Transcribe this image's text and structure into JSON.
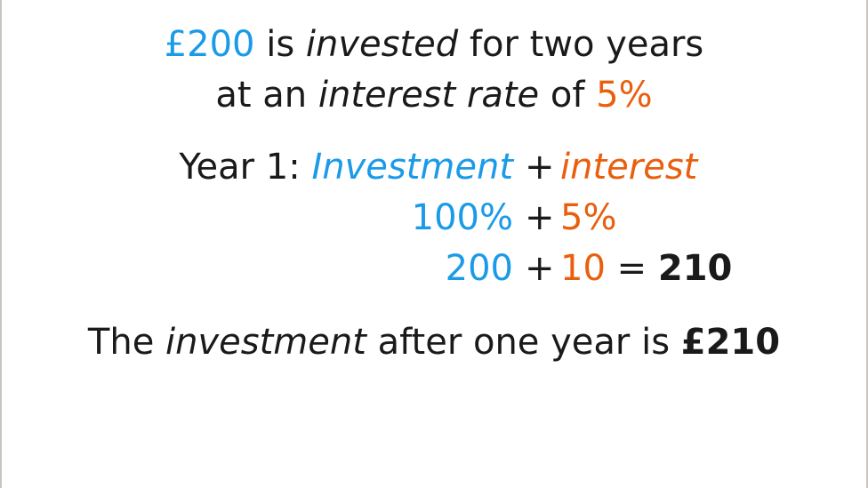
{
  "intro": {
    "amount": "£200",
    "is": "is",
    "invested": "invested",
    "for_two_years": "for two years",
    "at_an": "at an",
    "interest_rate": "interest rate",
    "of": "of",
    "rate": "5%"
  },
  "calc": {
    "year_label": "Year 1:",
    "investment": "Investment",
    "plus": "+",
    "interest": "interest",
    "pct_investment": "100%",
    "pct_interest": "5%",
    "value_investment": "200",
    "value_interest": "10",
    "equals": "=",
    "total": "210"
  },
  "conclusion": {
    "the": "The",
    "investment": "investment",
    "after": "after one year is",
    "total": "£210"
  },
  "colors": {
    "investment": "#1a9ae8",
    "interest": "#e8600e",
    "text": "#1a1a1a"
  }
}
